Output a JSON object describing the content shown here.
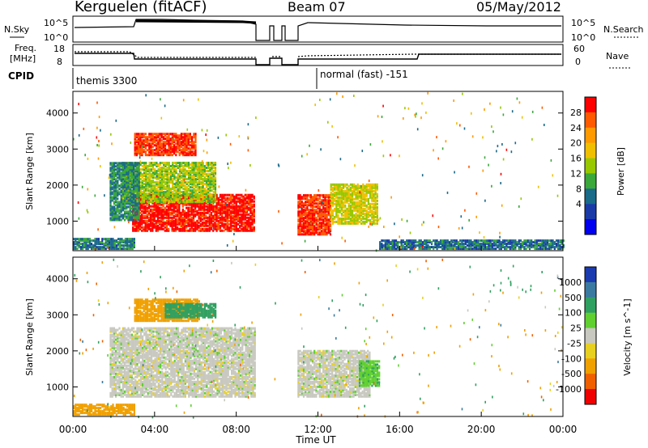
{
  "header": {
    "title": "Kerguelen (fitACF)",
    "beam": "Beam 07",
    "date": "05/May/2012"
  },
  "strips": {
    "nsky": {
      "left_label": "N.Sky",
      "right_label": "N.Search",
      "left_ticks": [
        "10^5",
        "10^0"
      ],
      "right_ticks": [
        "10^5",
        "10^0"
      ]
    },
    "freq": {
      "left_label_1": "Freq.",
      "left_label_2": "[MHz]",
      "right_label": "Nave",
      "left_ticks": [
        "18",
        "8"
      ],
      "right_ticks": [
        "60",
        "0"
      ]
    },
    "cpid": {
      "label": "CPID",
      "segments": [
        {
          "text": "themis 3300",
          "start_hour": 0
        },
        {
          "text": "normal (fast) -151",
          "start_hour": 12.1
        }
      ]
    }
  },
  "chart_data": [
    {
      "type": "heatmap",
      "name": "power",
      "ylabel": "Slant Range [km]",
      "yticks": [
        1000,
        2000,
        3000,
        4000
      ],
      "ylim": [
        180,
        4600
      ],
      "colorbar_label": "Power [dB]",
      "colorbar_ticks": [
        "28",
        "24",
        "20",
        "16",
        "12",
        "8",
        "4"
      ],
      "colorbar_colors": [
        "#ff0000",
        "#ff5a00",
        "#ff9a00",
        "#f0c000",
        "#98c800",
        "#3aa83a",
        "#1a6a8a",
        "#1a3aa8",
        "#0000f0"
      ],
      "data_gaps_hours": [
        [
          8.95,
          9.85
        ],
        [
          10.4,
          10.95
        ]
      ],
      "regions": [
        {
          "t0": 2.9,
          "t1": 8.9,
          "r0": 700,
          "r1": 1700,
          "value": 28
        },
        {
          "t0": 3.0,
          "t1": 6.0,
          "r0": 2800,
          "r1": 3400,
          "value": 26
        },
        {
          "t0": 2.4,
          "t1": 7.0,
          "r0": 1500,
          "r1": 2600,
          "value": 12
        },
        {
          "t0": 1.8,
          "t1": 3.2,
          "r0": 1000,
          "r1": 2600,
          "value": 6
        },
        {
          "t0": 11.0,
          "t1": 12.6,
          "r0": 600,
          "r1": 1700,
          "value": 26
        },
        {
          "t0": 12.6,
          "t1": 14.9,
          "r0": 900,
          "r1": 2000,
          "value": 14
        },
        {
          "t0": 0.0,
          "t1": 3.0,
          "r0": 200,
          "r1": 500,
          "value": 5
        },
        {
          "t0": 15.0,
          "t1": 24.0,
          "r0": 200,
          "r1": 450,
          "value": 4
        }
      ]
    },
    {
      "type": "heatmap",
      "name": "velocity",
      "xlabel": "Time UT",
      "ylabel": "Slant Range [km]",
      "xticks": [
        "00:00",
        "04:00",
        "08:00",
        "12:00",
        "16:00",
        "20:00",
        "00:00"
      ],
      "yticks": [
        1000,
        2000,
        3000,
        4000
      ],
      "ylim": [
        180,
        4600
      ],
      "colorbar_label": "Velocity [m s^-1]",
      "colorbar_ticks": [
        "1000",
        "500",
        "100",
        "25",
        "-25",
        "-100",
        "-500",
        "-1000"
      ],
      "colorbar_colors": [
        "#1a3ab0",
        "#3a7aa0",
        "#30a060",
        "#60d030",
        "#c8c8c0",
        "#e8d020",
        "#f0a000",
        "#f06000",
        "#f00000"
      ],
      "data_gaps_hours": [
        [
          8.95,
          9.85
        ],
        [
          10.4,
          10.95
        ]
      ],
      "regions": [
        {
          "t0": 1.8,
          "t1": 9.0,
          "r0": 700,
          "r1": 2600,
          "value": 0
        },
        {
          "t0": 11.0,
          "t1": 14.5,
          "r0": 700,
          "r1": 2000,
          "value": 0
        },
        {
          "t0": 3.0,
          "t1": 6.2,
          "r0": 2800,
          "r1": 3400,
          "value": -200
        },
        {
          "t0": 4.5,
          "t1": 7.0,
          "r0": 2900,
          "r1": 3300,
          "value": 150
        },
        {
          "t0": 0.0,
          "t1": 3.0,
          "r0": 200,
          "r1": 500,
          "value": -150
        },
        {
          "t0": 14.0,
          "t1": 15.0,
          "r0": 1000,
          "r1": 1700,
          "value": 80
        }
      ]
    }
  ]
}
